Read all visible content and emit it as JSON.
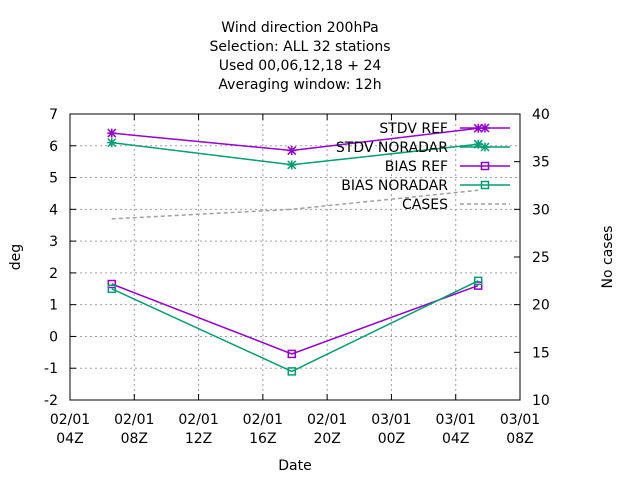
{
  "chart_data": {
    "type": "line",
    "title_lines": [
      "Wind direction 200hPa",
      "Selection: ALL      32 stations",
      "Used  00,06,12,18 + 24",
      "Averaging window: 12h"
    ],
    "xlabel": "Date",
    "ylabel": "deg",
    "y2label": "No cases",
    "ylim": [
      -2,
      7
    ],
    "y2lim": [
      10,
      40
    ],
    "yticks": [
      -2,
      -1,
      0,
      1,
      2,
      3,
      4,
      5,
      6,
      7
    ],
    "y2ticks": [
      10,
      15,
      20,
      25,
      30,
      35,
      40
    ],
    "xlim_hours": [
      0,
      28
    ],
    "xticks": [
      {
        "line1": "02/01",
        "line2": "04Z"
      },
      {
        "line1": "02/01",
        "line2": "08Z"
      },
      {
        "line1": "02/01",
        "line2": "12Z"
      },
      {
        "line1": "02/01",
        "line2": "16Z"
      },
      {
        "line1": "02/01",
        "line2": "20Z"
      },
      {
        "line1": "03/01",
        "line2": "00Z"
      },
      {
        "line1": "03/01",
        "line2": "04Z"
      },
      {
        "line1": "03/01",
        "line2": "08Z"
      }
    ],
    "grid": true,
    "legend_position": "top-right",
    "series": [
      {
        "name": "STDV REF",
        "axis": "y1",
        "color": "#9400d3",
        "marker": "star",
        "dash": false,
        "points": [
          [
            2.6,
            6.4
          ],
          [
            13.8,
            5.85
          ],
          [
            25.4,
            6.55
          ]
        ]
      },
      {
        "name": "STDV NORADAR",
        "axis": "y1",
        "color": "#009e73",
        "marker": "star",
        "dash": false,
        "points": [
          [
            2.6,
            6.1
          ],
          [
            13.8,
            5.4
          ],
          [
            25.4,
            6.05
          ]
        ]
      },
      {
        "name": "BIAS REF",
        "axis": "y1",
        "color": "#9400d3",
        "marker": "square",
        "dash": false,
        "points": [
          [
            2.6,
            1.65
          ],
          [
            13.8,
            -0.55
          ],
          [
            25.4,
            1.6
          ]
        ]
      },
      {
        "name": "BIAS NORADAR",
        "axis": "y1",
        "color": "#009e73",
        "marker": "square",
        "dash": false,
        "points": [
          [
            2.6,
            1.5
          ],
          [
            13.8,
            -1.1
          ],
          [
            25.4,
            1.75
          ]
        ]
      },
      {
        "name": "CASES",
        "axis": "y2",
        "color": "#a0a0a0",
        "marker": "none",
        "dash": true,
        "points": [
          [
            2.6,
            29
          ],
          [
            13.8,
            30
          ],
          [
            25.4,
            32
          ]
        ]
      }
    ]
  }
}
